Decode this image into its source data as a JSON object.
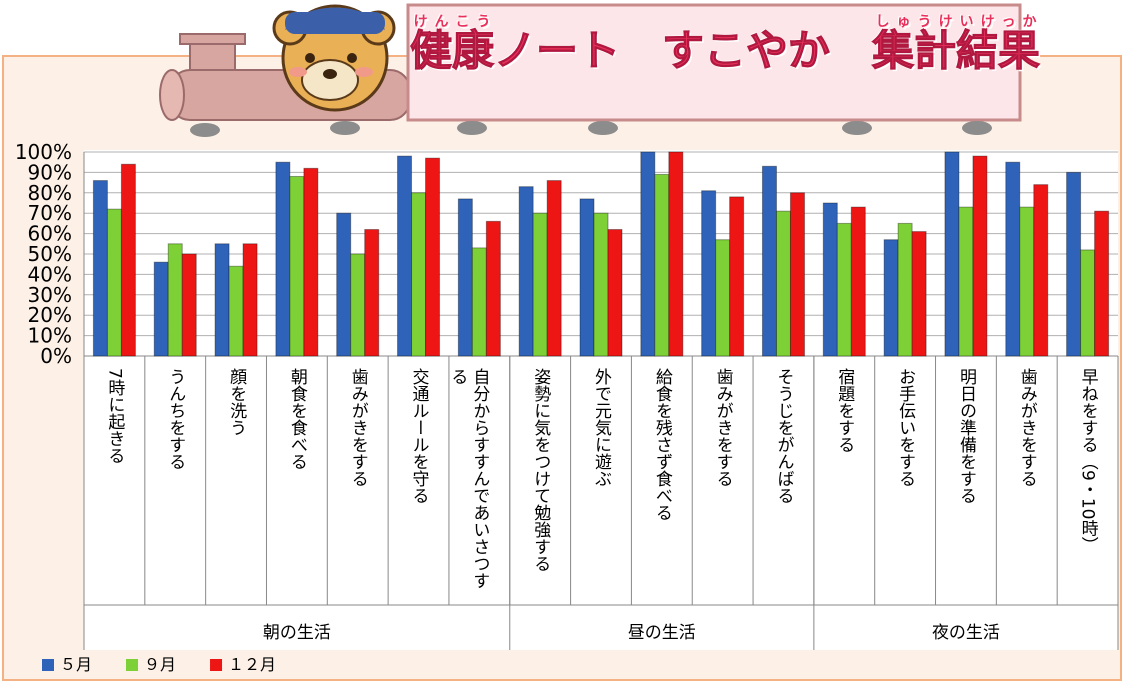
{
  "chart_data": {
    "type": "bar",
    "title_segments": [
      {
        "text": "健康",
        "ruby": "けんこう"
      },
      {
        "text": "ノート　すこやか　"
      },
      {
        "text": "集計結果",
        "ruby": "しゅうけいけっか"
      }
    ],
    "categories": [
      "7時に起きる",
      "うんちをする",
      "顔を洗う",
      "朝食を食べる",
      "歯みがきをする",
      "交通ルールを守る",
      "自分からすすんであいさつする",
      "姿勢に気をつけて勉強する",
      "外で元気に遊ぶ",
      "給食を残さず食べる",
      "歯みがきをする",
      "そうじをがんばる",
      "宿題をする",
      "お手伝いをする",
      "明日の準備をする",
      "歯みがきをする",
      "早ねをする（9・10時）"
    ],
    "groups": [
      {
        "name": "朝の生活",
        "count": 7
      },
      {
        "name": "昼の生活",
        "count": 5
      },
      {
        "name": "夜の生活",
        "count": 5
      }
    ],
    "series": [
      {
        "name": "５月",
        "color": "#2f63b9",
        "values": [
          86,
          46,
          55,
          95,
          70,
          98,
          77,
          83,
          77,
          100,
          81,
          93,
          75,
          57,
          100,
          95,
          90
        ]
      },
      {
        "name": "９月",
        "color": "#7dd035",
        "values": [
          72,
          55,
          44,
          88,
          50,
          80,
          53,
          70,
          70,
          89,
          57,
          71,
          65,
          65,
          73,
          73,
          52
        ]
      },
      {
        "name": "１２月",
        "color": "#ee1515",
        "values": [
          94,
          50,
          55,
          92,
          62,
          97,
          66,
          86,
          62,
          100,
          78,
          80,
          73,
          61,
          98,
          84,
          71
        ]
      }
    ],
    "ylim": [
      0,
      100
    ],
    "yticks": [
      {
        "value": 0,
        "label": "0%"
      },
      {
        "value": 10,
        "label": "10%"
      },
      {
        "value": 20,
        "label": "20%"
      },
      {
        "value": 30,
        "label": "30%"
      },
      {
        "value": 40,
        "label": "40%"
      },
      {
        "value": 50,
        "label": "50%"
      },
      {
        "value": 60,
        "label": "60%"
      },
      {
        "value": 70,
        "label": "70%"
      },
      {
        "value": 80,
        "label": "80%"
      },
      {
        "value": 90,
        "label": "90%"
      },
      {
        "value": 100,
        "label": "100%"
      }
    ],
    "grid": true,
    "legend": "bottom-left"
  }
}
